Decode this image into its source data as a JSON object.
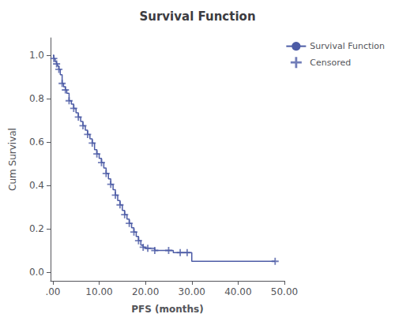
{
  "chart_data": {
    "type": "line",
    "title": "Survival Function",
    "xlabel": "PFS (months)",
    "ylabel": "Cum Survival",
    "xlim": [
      -0.5,
      50
    ],
    "ylim": [
      -0.04,
      1.08
    ],
    "xticks": [
      {
        "value": 0,
        "label": ".00"
      },
      {
        "value": 10,
        "label": "10.00"
      },
      {
        "value": 20,
        "label": "20.00"
      },
      {
        "value": 30,
        "label": "30.00"
      },
      {
        "value": 40,
        "label": "40.00"
      },
      {
        "value": 50,
        "label": "50.00"
      }
    ],
    "yticks": [
      {
        "value": 0,
        "label": "0.0"
      },
      0.2,
      0.4,
      0.6,
      0.8,
      {
        "value": 1,
        "label": "1.0"
      }
    ],
    "grid": false,
    "legend": "right",
    "series": [
      {
        "name": "Survival Function",
        "type": "line",
        "line_style": "step",
        "color": "#4D5CA6",
        "x": [
          0.0,
          0.2,
          0.5,
          0.8,
          1.0,
          1.3,
          1.6,
          2.0,
          2.3,
          2.7,
          3.0,
          3.5,
          4.0,
          4.5,
          5.0,
          5.5,
          6.0,
          6.5,
          7.0,
          7.5,
          8.0,
          8.5,
          9.0,
          9.5,
          10.0,
          10.5,
          11.0,
          11.5,
          12.0,
          12.5,
          13.0,
          13.5,
          14.0,
          14.5,
          15.0,
          15.5,
          16.0,
          16.5,
          17.0,
          17.5,
          18.0,
          18.5,
          19.0,
          19.5,
          20.0,
          20.5,
          21.0,
          22.0,
          23.5,
          25.0,
          26.0,
          27.5,
          29.0,
          30.0,
          48.0
        ],
        "values": [
          1.0,
          0.985,
          0.97,
          0.96,
          0.95,
          0.935,
          0.91,
          0.87,
          0.855,
          0.84,
          0.825,
          0.79,
          0.775,
          0.755,
          0.735,
          0.715,
          0.695,
          0.675,
          0.655,
          0.635,
          0.615,
          0.595,
          0.565,
          0.545,
          0.525,
          0.505,
          0.48,
          0.455,
          0.43,
          0.405,
          0.38,
          0.355,
          0.33,
          0.31,
          0.285,
          0.265,
          0.245,
          0.225,
          0.205,
          0.185,
          0.165,
          0.145,
          0.125,
          0.115,
          0.11,
          0.11,
          0.11,
          0.1,
          0.1,
          0.1,
          0.09,
          0.09,
          0.09,
          0.05,
          0.05
        ]
      },
      {
        "name": "Censored",
        "type": "scatter",
        "marker": "plus",
        "color": "#4D5CA6",
        "x": [
          0.2,
          0.8,
          1.3,
          2.0,
          2.7,
          3.5,
          4.5,
          5.5,
          6.5,
          7.5,
          8.5,
          9.5,
          10.5,
          11.5,
          12.5,
          13.5,
          14.5,
          15.5,
          16.5,
          17.5,
          18.5,
          19.5,
          20.5,
          22.0,
          25.0,
          27.5,
          29.0,
          48.0
        ],
        "values": [
          0.985,
          0.96,
          0.935,
          0.87,
          0.84,
          0.79,
          0.755,
          0.715,
          0.675,
          0.635,
          0.595,
          0.545,
          0.505,
          0.455,
          0.405,
          0.355,
          0.31,
          0.265,
          0.225,
          0.185,
          0.145,
          0.115,
          0.11,
          0.1,
          0.1,
          0.09,
          0.09,
          0.05
        ]
      }
    ]
  }
}
